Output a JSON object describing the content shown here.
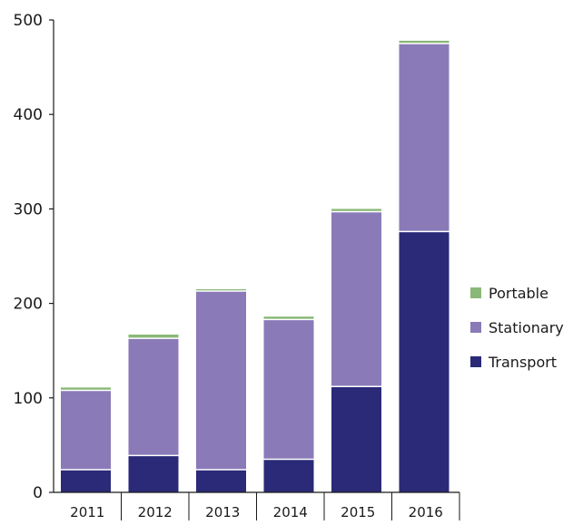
{
  "chart_data": {
    "type": "bar",
    "stacked": true,
    "title": "",
    "xlabel": "",
    "ylabel": "",
    "categories": [
      "2011",
      "2012",
      "2013",
      "2014",
      "2015",
      "2016"
    ],
    "ylim": [
      0,
      500
    ],
    "yticks": [
      0,
      100,
      200,
      300,
      400,
      500
    ],
    "grid": false,
    "legend_position": "right",
    "series": [
      {
        "name": "Transport",
        "color": "#2a2a78",
        "values": [
          24,
          39,
          24,
          35,
          112,
          276
        ]
      },
      {
        "name": "Stationary",
        "color": "#8a7ab8",
        "values": [
          84,
          124,
          189,
          148,
          185,
          199
        ]
      },
      {
        "name": "Portable",
        "color": "#8ab878",
        "values": [
          3,
          4,
          2,
          3,
          3,
          3
        ]
      }
    ],
    "legend_order": [
      "Portable",
      "Stationary",
      "Transport"
    ]
  }
}
